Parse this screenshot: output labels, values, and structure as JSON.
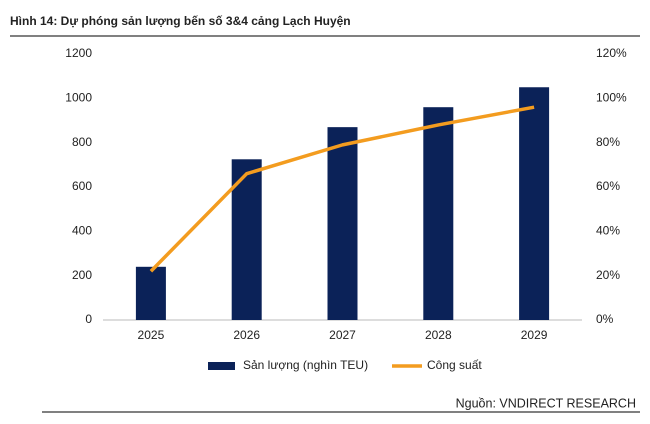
{
  "chart_data": {
    "type": "bar",
    "title": "Hình 14: Dự phóng sản lượng bến số 3&4 cảng Lạch Huyện",
    "categories": [
      "2025",
      "2026",
      "2027",
      "2028",
      "2029"
    ],
    "series": [
      {
        "name": "Sản lượng (nghìn TEU)",
        "color": "#0b2258",
        "type": "bar",
        "values": [
          240,
          725,
          870,
          960,
          1050
        ]
      },
      {
        "name": "Công suất",
        "color": "#f39c1f",
        "type": "line",
        "axis": "y2",
        "values": [
          22,
          66,
          79,
          88,
          96
        ]
      }
    ],
    "ylim": [
      0,
      1200
    ],
    "yticks": [
      0,
      200,
      400,
      600,
      800,
      1000,
      1200
    ],
    "y2lim": [
      0,
      120
    ],
    "y2ticks": [
      {
        "value": 0,
        "label": "0%"
      },
      {
        "value": 20,
        "label": "20%"
      },
      {
        "value": 40,
        "label": "40%"
      },
      {
        "value": 60,
        "label": "60%"
      },
      {
        "value": 80,
        "label": "80%"
      },
      {
        "value": 100,
        "label": "100%"
      },
      {
        "value": 120,
        "label": "120%"
      }
    ],
    "grid": false,
    "source": "Nguồn: VNDIRECT RESEARCH"
  }
}
